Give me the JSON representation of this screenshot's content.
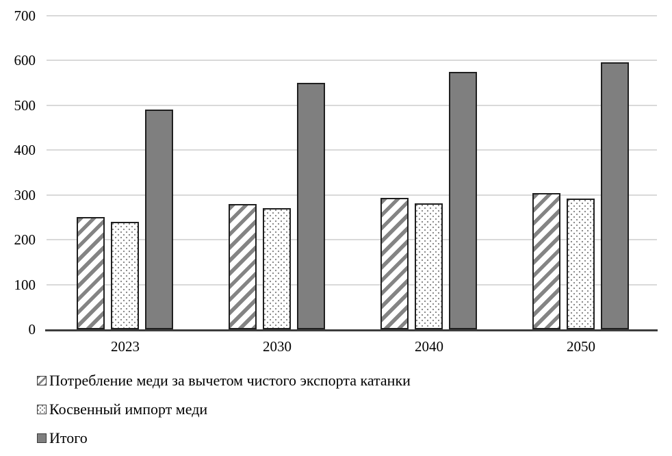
{
  "chart_data": {
    "type": "bar",
    "title": "",
    "xlabel": "",
    "ylabel": "",
    "categories": [
      "2023",
      "2030",
      "2040",
      "2050"
    ],
    "series": [
      {
        "name": "Потребление меди за вычетом чистого экспорта катанки",
        "pattern": "diagonal-hatch",
        "values": [
          250,
          280,
          293,
          304
        ]
      },
      {
        "name": "Косвенный импорт меди",
        "pattern": "dots",
        "values": [
          240,
          270,
          281,
          292
        ]
      },
      {
        "name": "Итого",
        "pattern": "solid",
        "values": [
          490,
          550,
          574,
          596
        ]
      }
    ],
    "ylim": [
      0,
      700
    ],
    "ytick_step": 100,
    "yticks": [
      "0",
      "100",
      "200",
      "300",
      "400",
      "500",
      "600",
      "700"
    ],
    "grid": true,
    "legend_position": "bottom-left",
    "colors": {
      "solid_fill": "#7f7f7f",
      "hatch_stripe": "#848484",
      "dot": "#8c8c8c",
      "bar_border": "#1f1f1f",
      "gridline": "#d9d9d9",
      "axis_line": "#3d3d3d",
      "text": "#000000",
      "background": "#ffffff"
    }
  }
}
